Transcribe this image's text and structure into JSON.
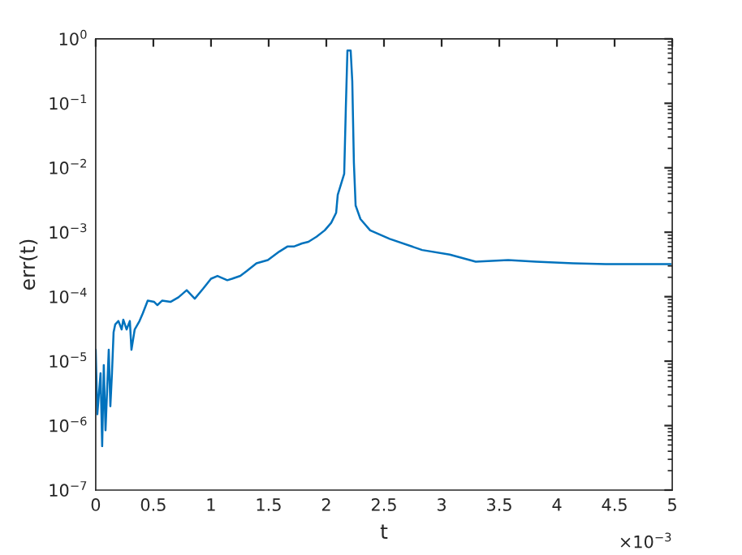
{
  "chart_data": {
    "type": "line",
    "xlabel": "t",
    "ylabel": "err(t)",
    "log": "y",
    "grid": false,
    "x": [
      0,
      0.014,
      0.042,
      0.056,
      0.07,
      0.085,
      0.099,
      0.113,
      0.127,
      0.141,
      0.155,
      0.169,
      0.197,
      0.225,
      0.239,
      0.268,
      0.296,
      0.31,
      0.338,
      0.38,
      0.408,
      0.451,
      0.507,
      0.535,
      0.577,
      0.648,
      0.718,
      0.789,
      0.859,
      0.93,
      1.0,
      1.056,
      1.141,
      1.183,
      1.254,
      1.31,
      1.394,
      1.493,
      1.592,
      1.662,
      1.718,
      1.789,
      1.845,
      1.915,
      1.986,
      2.042,
      2.085,
      2.099,
      2.155,
      2.169,
      2.183,
      2.211,
      2.225,
      2.239,
      2.254,
      2.296,
      2.38,
      2.549,
      2.831,
      3.07,
      3.296,
      3.577,
      3.817,
      4.141,
      4.423,
      4.704,
      4.986
    ],
    "series": [
      {
        "color": "#0072bd",
        "values": [
          1.5e-05,
          1.5e-06,
          6.5e-06,
          4.8e-07,
          8.7e-06,
          8.5e-07,
          3.6e-06,
          1.5e-05,
          2e-06,
          6.5e-06,
          2.8e-05,
          3.7e-05,
          4.2e-05,
          3.1e-05,
          4.4e-05,
          3.1e-05,
          4.2e-05,
          1.5e-05,
          3.1e-05,
          4.2e-05,
          5.5e-05,
          8.7e-05,
          8.3e-05,
          7.4e-05,
          8.7e-05,
          8.3e-05,
          9.8e-05,
          0.000126,
          9.3e-05,
          0.000132,
          0.00019,
          0.00021,
          0.00018,
          0.00019,
          0.00021,
          0.00025,
          0.00033,
          0.00037,
          0.0005,
          0.0006,
          0.0006,
          0.00067,
          0.00071,
          0.00085,
          0.00107,
          0.0014,
          0.002,
          0.0038,
          0.0081,
          0.083,
          0.66,
          0.66,
          0.22,
          0.012,
          0.0026,
          0.0016,
          0.00107,
          0.00079,
          0.00053,
          0.00045,
          0.00035,
          0.00037,
          0.00035,
          0.00033,
          0.00032,
          0.00032,
          0.00032
        ]
      }
    ],
    "xlim": [
      0,
      5
    ],
    "xticks": [
      0,
      0.5,
      1,
      1.5,
      2,
      2.5,
      3,
      3.5,
      4,
      4.5,
      5
    ],
    "ylim": [
      1e-07,
      1
    ],
    "yticks": [
      {
        "value": 1e-07,
        "label": "10$^{−7}$"
      },
      {
        "value": 1e-06,
        "label": "10$^{−6}$"
      },
      {
        "value": 1e-05,
        "label": "10$^{−5}$"
      },
      {
        "value": 0.0001,
        "label": "10$^{−4}$"
      },
      {
        "value": 0.001,
        "label": "10$^{−3}$"
      },
      {
        "value": 0.01,
        "label": "10$^{−2}$"
      },
      {
        "value": 0.1,
        "label": "10$^{−1}$"
      },
      {
        "value": 1,
        "label": "10$^{0}$"
      }
    ],
    "annotations": [
      "×10$^{−3}$"
    ]
  }
}
